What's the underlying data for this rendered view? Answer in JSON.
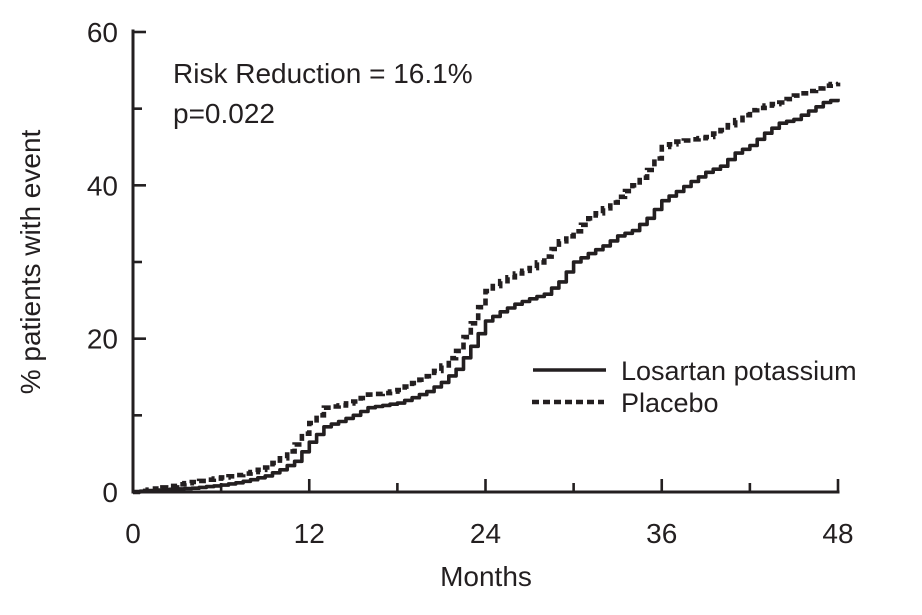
{
  "figure": {
    "annotation": {
      "line1": "Risk Reduction = 16.1%",
      "line2": "p=0.022"
    },
    "legend": [
      {
        "label": "Losartan potassium",
        "style": "solid"
      },
      {
        "label": "Placebo",
        "style": "dashed"
      }
    ],
    "colors": {
      "ink": "#231f20",
      "background": "#ffffff"
    }
  },
  "chart_data": {
    "type": "line",
    "title": "",
    "xlabel": "Months",
    "ylabel": "% patients with event",
    "xlim": [
      0,
      48
    ],
    "ylim": [
      0,
      60
    ],
    "x_ticks": [
      0,
      12,
      24,
      36,
      48
    ],
    "x_minor_ticks": [
      6,
      18,
      30,
      42
    ],
    "y_ticks": [
      0,
      20,
      40,
      60
    ],
    "y_minor_ticks": [
      10,
      30,
      50
    ],
    "grid": false,
    "legend_position": "inside-right-center",
    "curve_style": "kaplan-meier-steps",
    "x": [
      0,
      1,
      2,
      3,
      4,
      5,
      6,
      7,
      8,
      9,
      10,
      11,
      12,
      13,
      14,
      15,
      16,
      17,
      18,
      19,
      20,
      21,
      22,
      23,
      24,
      25,
      26,
      27,
      28,
      29,
      30,
      31,
      32,
      33,
      34,
      35,
      36,
      37,
      38,
      39,
      40,
      41,
      42,
      43,
      44,
      45,
      46,
      47,
      48
    ],
    "series": [
      {
        "name": "Losartan potassium",
        "line_style": "solid",
        "values": [
          0,
          0.2,
          0.3,
          0.4,
          0.5,
          0.7,
          0.9,
          1.2,
          1.6,
          2.1,
          2.9,
          4.0,
          6.5,
          8.5,
          9.2,
          10.0,
          11.0,
          11.3,
          11.6,
          12.3,
          13.1,
          14.3,
          16.0,
          19.0,
          22.3,
          23.5,
          24.5,
          25.2,
          25.8,
          27.4,
          30.0,
          31.1,
          32.1,
          33.4,
          34.1,
          35.7,
          38.0,
          39.2,
          40.5,
          41.7,
          42.5,
          44.2,
          45.2,
          46.8,
          48.1,
          48.6,
          49.7,
          50.8,
          51.3
        ]
      },
      {
        "name": "Placebo",
        "line_style": "dashed",
        "values": [
          0,
          0.3,
          0.6,
          1.0,
          1.3,
          1.6,
          1.9,
          2.2,
          2.6,
          3.2,
          4.4,
          6.2,
          9.0,
          11.0,
          11.3,
          11.8,
          12.7,
          12.9,
          13.3,
          14.2,
          15.1,
          16.5,
          18.4,
          22.0,
          26.2,
          27.5,
          28.5,
          29.2,
          30.7,
          32.7,
          34.0,
          35.7,
          37.0,
          38.5,
          40.0,
          42.0,
          45.0,
          45.7,
          46.0,
          46.3,
          47.2,
          48.5,
          49.8,
          50.4,
          50.8,
          51.7,
          52.3,
          53.0,
          53.4
        ]
      }
    ],
    "annotations": [
      "Risk Reduction = 16.1%",
      "p=0.022"
    ]
  }
}
